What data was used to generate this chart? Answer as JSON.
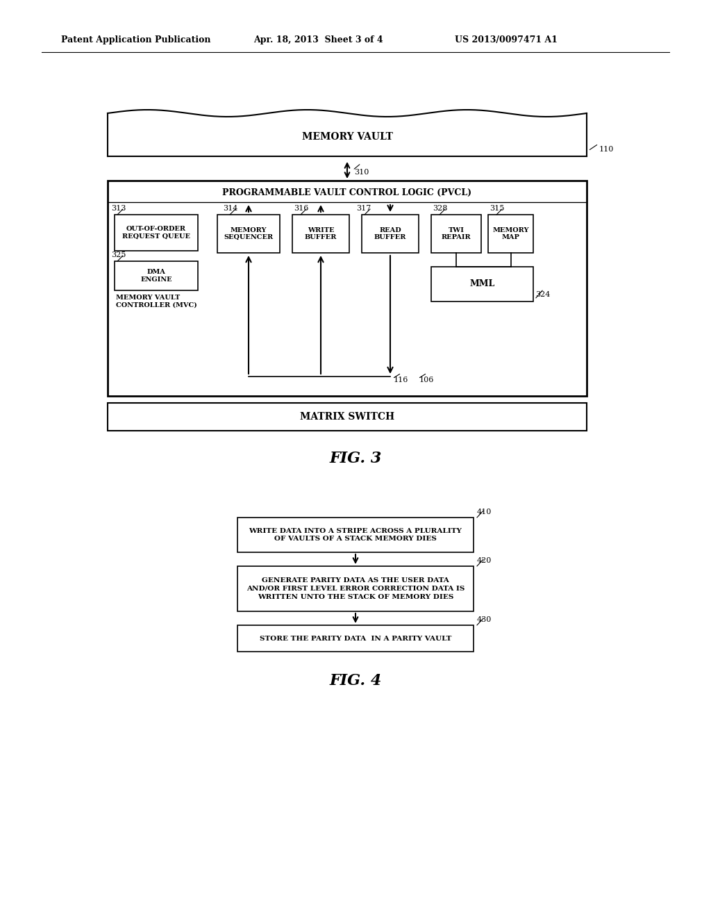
{
  "bg_color": "#ffffff",
  "header_left": "Patent Application Publication",
  "header_mid": "Apr. 18, 2013  Sheet 3 of 4",
  "header_right": "US 2013/0097471 A1",
  "fig3_label": "FIG. 3",
  "fig4_label": "FIG. 4",
  "memory_vault_text": "MEMORY VAULT",
  "pvcl_text": "PROGRAMMABLE VAULT CONTROL LOGIC (PVCL)",
  "matrix_switch_text": "MATRIX SWITCH",
  "box_labels": {
    "out_of_order": "OUT-OF-ORDER\nREQUEST QUEUE",
    "dma_engine": "DMA\nENGINE",
    "mvc_label": "MEMORY VAULT\nCONTROLLER (MVC)",
    "memory_sequencer": "MEMORY\nSEQUENCER",
    "write_buffer": "WRITE\nBUFFER",
    "read_buffer": "READ\nBUFFER",
    "twi_repair": "TWI\nREPAIR",
    "memory_map": "MEMORY\nMAP",
    "mml": "MML"
  },
  "ref_numbers": {
    "n110": "110",
    "n310": "310",
    "n313": "313",
    "n314": "314",
    "n315": "315",
    "n316": "316",
    "n317": "317",
    "n324": "324",
    "n325": "325",
    "n328": "328",
    "n116": "116",
    "n106": "106"
  },
  "flow_boxes": [
    {
      "id": "410",
      "text": "WRITE DATA INTO A STRIPE ACROSS A PLURALITY\nOF VAULTS OF A STACK MEMORY DIES"
    },
    {
      "id": "420",
      "text": "GENERATE PARITY DATA AS THE USER DATA\nAND/OR FIRST LEVEL ERROR CORRECTION DATA IS\nWRITTEN UNTO THE STACK OF MEMORY DIES"
    },
    {
      "id": "430",
      "text": "STORE THE PARITY DATA  IN A PARITY VAULT"
    }
  ]
}
